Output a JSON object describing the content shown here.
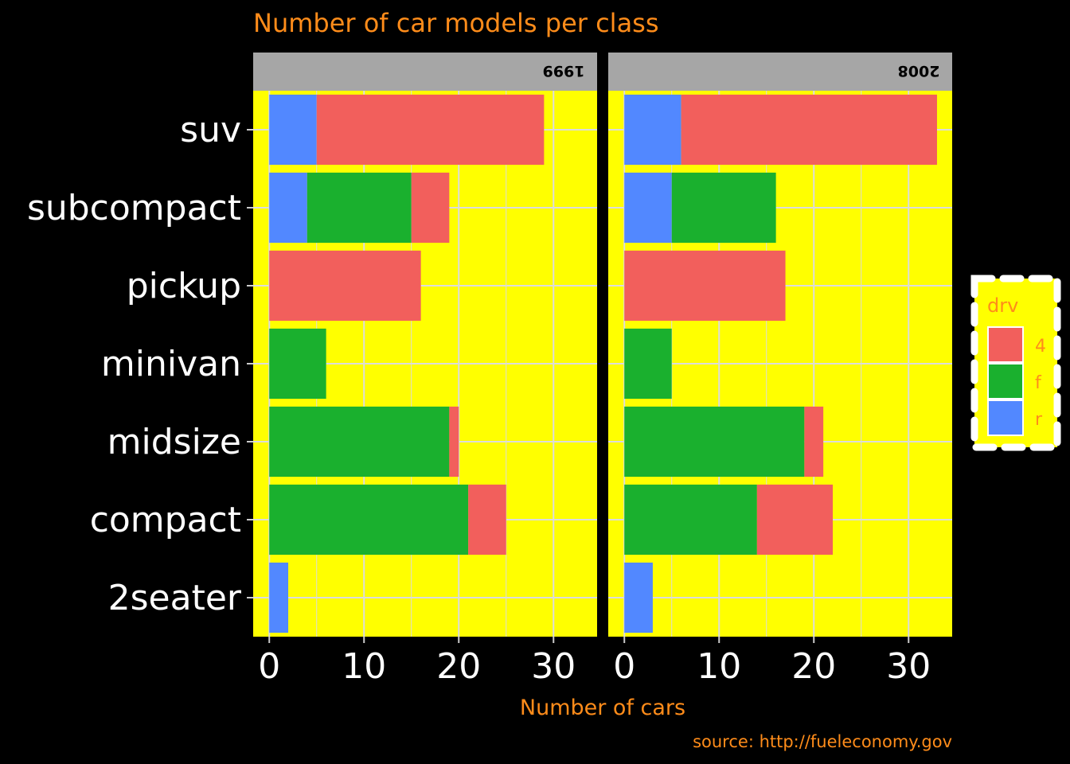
{
  "chart_data": {
    "type": "bar",
    "orientation": "horizontal",
    "stacked": true,
    "title": "Number of car models per class",
    "xlabel": "Number of cars",
    "ylabel": "",
    "caption": "source: http://fueleconomy.gov",
    "categories": [
      "2seater",
      "compact",
      "midsize",
      "minivan",
      "pickup",
      "subcompact",
      "suv"
    ],
    "xlim": [
      -1.7,
      34.6
    ],
    "x_ticks": [
      0,
      10,
      20,
      30
    ],
    "grid": true,
    "legend": {
      "title": "drv",
      "position": "right",
      "entries": [
        {
          "key": "4",
          "label": "4",
          "color": "#f25f5c"
        },
        {
          "key": "f",
          "label": "f",
          "color": "#1ab02e"
        },
        {
          "key": "r",
          "label": "r",
          "color": "#5288ff"
        }
      ]
    },
    "stack_order": [
      "r",
      "f",
      "4"
    ],
    "panels": [
      {
        "label": "1999",
        "series": [
          {
            "name": "r",
            "values": [
              2,
              0,
              0,
              0,
              0,
              4,
              5
            ]
          },
          {
            "name": "f",
            "values": [
              0,
              21,
              19,
              6,
              0,
              11,
              0
            ]
          },
          {
            "name": "4",
            "values": [
              0,
              4,
              1,
              0,
              16,
              4,
              24
            ]
          }
        ]
      },
      {
        "label": "2008",
        "series": [
          {
            "name": "r",
            "values": [
              3,
              0,
              0,
              0,
              0,
              5,
              6
            ]
          },
          {
            "name": "f",
            "values": [
              0,
              14,
              19,
              5,
              0,
              11,
              0
            ]
          },
          {
            "name": "4",
            "values": [
              0,
              8,
              2,
              0,
              17,
              0,
              27
            ]
          }
        ]
      }
    ]
  },
  "colors": {
    "page_background": "#000000",
    "panel_background": "#ffff00",
    "strip_background": "#a6a6a6",
    "gridline": "#dcdcdc",
    "accent_text": "#ff8c1a",
    "axis_text": "#ffffff"
  }
}
